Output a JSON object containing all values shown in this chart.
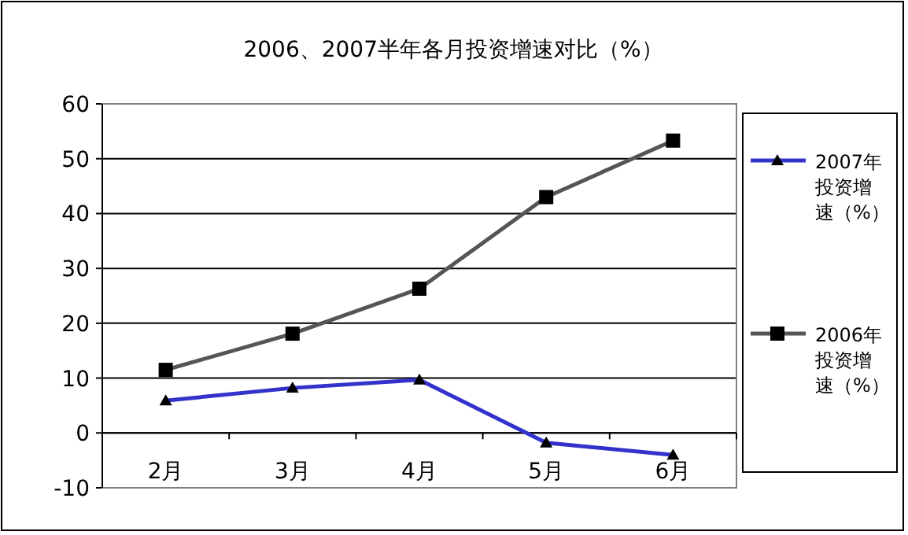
{
  "chart_data": {
    "type": "line",
    "title": "2006、2007半年各月投资增速对比（%）",
    "categories": [
      "2月",
      "3月",
      "4月",
      "5月",
      "6月"
    ],
    "series": [
      {
        "name": "2007年投资增速（%）",
        "color": "#3333cc",
        "marker": "triangle",
        "values": [
          5.9,
          8.2,
          9.7,
          -1.8,
          -4.0
        ]
      },
      {
        "name": "2006年投资增速（%）",
        "color": "#555555",
        "marker": "square",
        "values": [
          11.5,
          18.1,
          26.3,
          43,
          53.3
        ]
      }
    ],
    "ylim": [
      -10,
      60
    ],
    "yticks": [
      -10,
      0,
      10,
      20,
      30,
      40,
      50,
      60
    ],
    "grid": "y",
    "legend": "right"
  }
}
